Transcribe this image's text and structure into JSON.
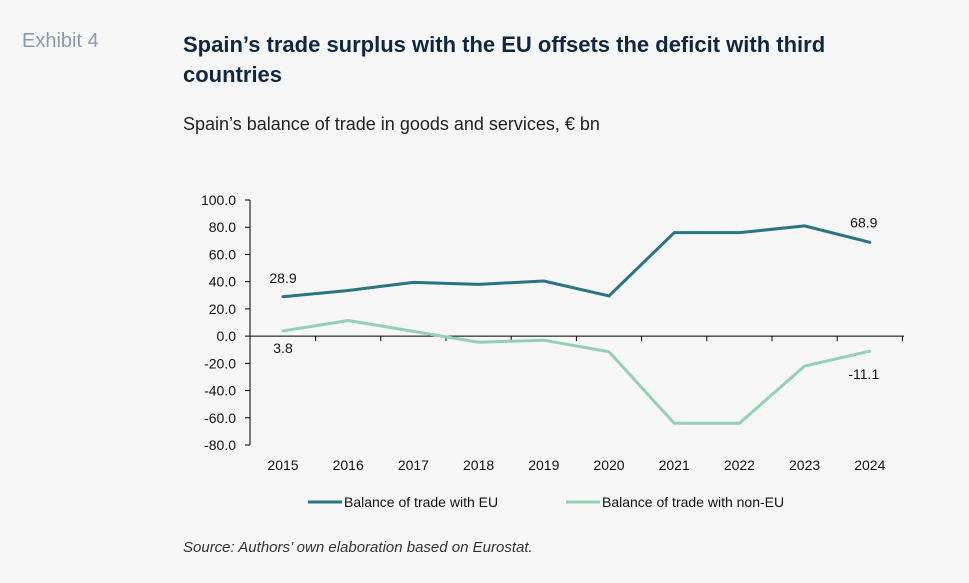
{
  "header": {
    "exhibit": "Exhibit 4",
    "title": "Spain’s trade surplus with the EU offsets the deficit with third countries",
    "subtitle": "Spain’s balance of trade in goods and services, € bn"
  },
  "footer": {
    "source": "Source: Authors’ own elaboration based on Eurostat."
  },
  "chart_data": {
    "type": "line",
    "x": [
      "2015",
      "2016",
      "2017",
      "2018",
      "2019",
      "2020",
      "2021",
      "2022",
      "2023",
      "2024"
    ],
    "ylim": [
      -80,
      100
    ],
    "yticks": [
      100,
      80,
      60,
      40,
      20,
      0,
      -20,
      -40,
      -60,
      -80
    ],
    "ytick_labels": [
      "100.0",
      "80.0",
      "60.0",
      "40.0",
      "20.0",
      "0.0",
      "-20.0",
      "-40.0",
      "-60.0",
      "-80.0"
    ],
    "grid": false,
    "legend_position": "bottom",
    "series": [
      {
        "name": "Balance of trade with EU",
        "color": "#2a7584",
        "values": [
          28.9,
          33.5,
          39.5,
          38.0,
          40.5,
          29.5,
          76.0,
          76.0,
          81.0,
          68.9
        ]
      },
      {
        "name": "Balance of trade with non-EU",
        "color": "#93d1b5",
        "values": [
          3.8,
          11.5,
          3.5,
          -4.5,
          -3.0,
          -11.5,
          -64.0,
          -64.0,
          -22.0,
          -11.1
        ]
      }
    ],
    "annotations": [
      {
        "series": 0,
        "index": 0,
        "text": "28.9"
      },
      {
        "series": 0,
        "index": 9,
        "text": "68.9"
      },
      {
        "series": 1,
        "index": 0,
        "text": "3.8"
      },
      {
        "series": 1,
        "index": 9,
        "text": "-11.1"
      }
    ]
  }
}
